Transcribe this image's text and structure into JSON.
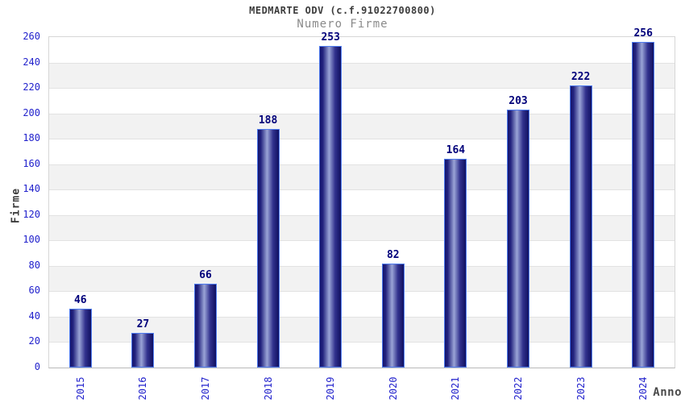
{
  "header": {
    "title": "MEDMARTE ODV (c.f.91022700800)",
    "subtitle": "Numero Firme"
  },
  "chart_data": {
    "type": "bar",
    "title": "MEDMARTE ODV (c.f.91022700800)",
    "subtitle": "Numero Firme",
    "categories": [
      "2015",
      "2016",
      "2017",
      "2018",
      "2019",
      "2020",
      "2021",
      "2022",
      "2023",
      "2024"
    ],
    "values": [
      46,
      27,
      66,
      188,
      253,
      82,
      164,
      203,
      222,
      256
    ],
    "xlabel": "Anno",
    "ylabel": "Firme",
    "ylim": [
      0,
      260
    ],
    "ytick_step": 20,
    "yticks": [
      0,
      20,
      40,
      60,
      80,
      100,
      120,
      140,
      160,
      180,
      200,
      220,
      240,
      260
    ],
    "grid": true,
    "legend": "none",
    "band_colors": [
      "#ffffff",
      "#f2f2f2"
    ]
  },
  "colors": {
    "bar_border": "#4f7cf0",
    "bar_dark": "#15156e",
    "bar_light": "#9aa4d6",
    "value_label": "#00007a",
    "tick_label": "#2222cc",
    "axis_title": "#3c3c3c",
    "subtitle": "#8a8a8a",
    "gridline": "#e2e2e2",
    "band_gray": "#f2f2f2"
  }
}
